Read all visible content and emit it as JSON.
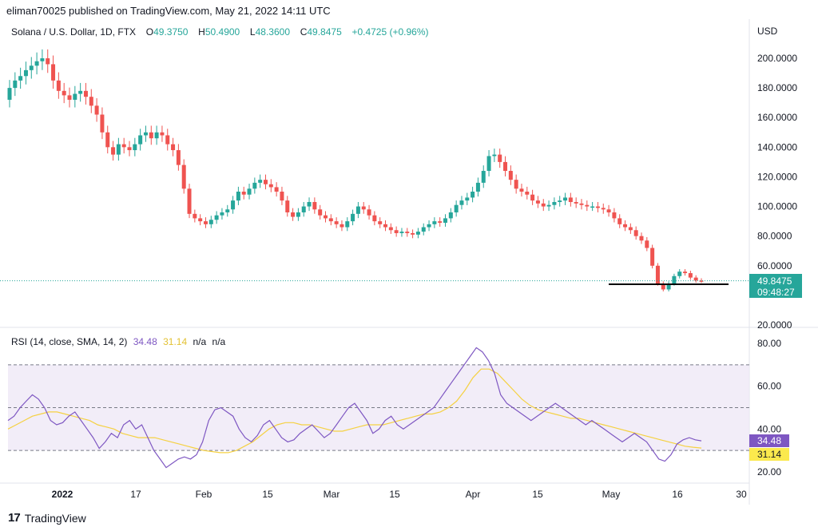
{
  "header": {
    "publisher": "eliman70025 published on TradingView.com, May 21, 2022 14:11 UTC"
  },
  "legend": {
    "symbol": "Solana / U.S. Dollar, 1D, FTX",
    "open_label": "O",
    "open": "49.3750",
    "high_label": "H",
    "high": "50.4900",
    "low_label": "L",
    "low": "48.3600",
    "close_label": "C",
    "close": "49.8475",
    "change": "+0.4725 (+0.96%)"
  },
  "price_axis": {
    "currency": "USD"
  },
  "price_tag": {
    "value": "49.8475",
    "countdown": "09:48:27"
  },
  "rsi_legend": {
    "title": "RSI (14, close, SMA, 14, 2)",
    "rsi": "34.48",
    "sma": "31.14",
    "na1": "n/a",
    "na2": "n/a"
  },
  "rsi_tags": {
    "rsi": "34.48",
    "sma": "31.14"
  },
  "footer": {
    "brand": "TradingView",
    "logo": "17"
  },
  "colors": {
    "up": "#26a69a",
    "down": "#ef5350",
    "rsi": "#7e57c2",
    "sma": "#f5d142",
    "band": "#ede7f6"
  },
  "chart_data": [
    {
      "type": "candlestick",
      "title": "Solana / U.S. Dollar, 1D, FTX",
      "ylim": [
        15,
        210
      ],
      "y_ticks": [
        "200.0000",
        "180.0000",
        "160.0000",
        "140.0000",
        "120.0000",
        "100.0000",
        "80.0000",
        "60.0000",
        "20.0000"
      ],
      "x_ticks": [
        "2022",
        "17",
        "Feb",
        "15",
        "Mar",
        "15",
        "Apr",
        "15",
        "May",
        "16",
        "30"
      ],
      "close_series": [
        180,
        185,
        188,
        192,
        195,
        198,
        200,
        196,
        185,
        178,
        175,
        172,
        176,
        178,
        174,
        168,
        162,
        150,
        140,
        135,
        142,
        140,
        138,
        142,
        148,
        150,
        146,
        150,
        148,
        142,
        138,
        128,
        112,
        95,
        92,
        90,
        88,
        91,
        94,
        96,
        98,
        104,
        110,
        108,
        112,
        116,
        118,
        115,
        113,
        110,
        104,
        96,
        93,
        96,
        100,
        103,
        98,
        94,
        92,
        90,
        88,
        86,
        90,
        95,
        100,
        98,
        94,
        90,
        88,
        86,
        84,
        82,
        83,
        82,
        81,
        83,
        86,
        88,
        90,
        89,
        92,
        96,
        101,
        104,
        106,
        110,
        116,
        124,
        134,
        135,
        130,
        124,
        118,
        112,
        110,
        108,
        104,
        102,
        100,
        101,
        103,
        104,
        106,
        103,
        102,
        101,
        100,
        100,
        99,
        98,
        96,
        92,
        88,
        86,
        84,
        80,
        77,
        72,
        60,
        48,
        44,
        48,
        53,
        56,
        55,
        52,
        50,
        49.85
      ],
      "last_close": 49.8475,
      "horizontal_line": 47.5
    },
    {
      "type": "line",
      "title": "RSI (14, close, SMA, 14, 2)",
      "ylim": [
        15,
        82
      ],
      "y_ticks": [
        "80.00",
        "60.00",
        "40.00",
        "20.00"
      ],
      "bands": [
        30,
        50,
        70
      ],
      "series": [
        {
          "name": "RSI",
          "values": [
            44,
            46,
            50,
            53,
            56,
            54,
            50,
            44,
            42,
            43,
            46,
            48,
            44,
            40,
            36,
            31,
            34,
            38,
            36,
            42,
            44,
            40,
            42,
            36,
            30,
            26,
            22,
            24,
            26,
            27,
            26,
            28,
            34,
            44,
            49,
            50,
            48,
            46,
            40,
            36,
            34,
            37,
            42,
            44,
            40,
            36,
            34,
            35,
            38,
            40,
            42,
            39,
            36,
            38,
            42,
            46,
            50,
            52,
            48,
            44,
            38,
            40,
            44,
            46,
            42,
            40,
            42,
            44,
            46,
            48,
            50,
            54,
            58,
            62,
            66,
            70,
            74,
            78,
            76,
            72,
            66,
            56,
            52,
            50,
            48,
            46,
            44,
            46,
            48,
            50,
            52,
            50,
            48,
            46,
            44,
            42,
            44,
            42,
            40,
            38,
            36,
            34,
            36,
            38,
            36,
            34,
            30,
            26,
            25,
            28,
            33,
            35,
            36,
            35,
            34.48
          ]
        },
        {
          "name": "SMA",
          "values": [
            40,
            42,
            44,
            46,
            47,
            48,
            48,
            47,
            46,
            45,
            44,
            42,
            41,
            40,
            38,
            37,
            36,
            36,
            36,
            35,
            34,
            33,
            32,
            31,
            30,
            29.5,
            29,
            29,
            30,
            32,
            34,
            37,
            40,
            42,
            43,
            43,
            42,
            42,
            41,
            40,
            39,
            39,
            40,
            41,
            42,
            42,
            42,
            43,
            44,
            45,
            46,
            47,
            47,
            48,
            50,
            53,
            58,
            64,
            68,
            68,
            66,
            62,
            58,
            54,
            51,
            49,
            48,
            47,
            46,
            45,
            45,
            44,
            43,
            42,
            41,
            40,
            39,
            38,
            37,
            36,
            35,
            34,
            33,
            32,
            31.5,
            31.14
          ]
        }
      ]
    }
  ]
}
